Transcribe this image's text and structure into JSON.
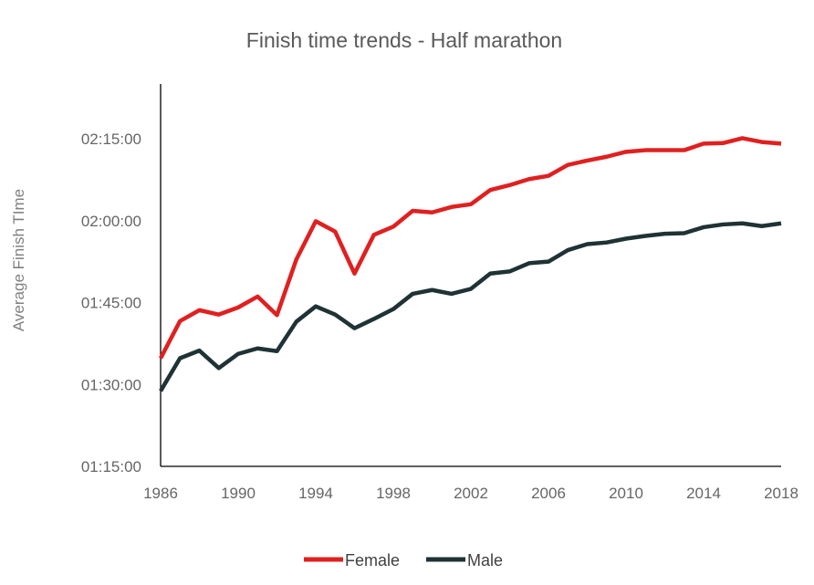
{
  "chart_data": {
    "type": "line",
    "title": "Finish time trends - Half marathon",
    "xlabel": "",
    "ylabel": "Average Finish TIme",
    "x": [
      1986,
      1987,
      1988,
      1989,
      1990,
      1991,
      1992,
      1993,
      1994,
      1995,
      1996,
      1997,
      1998,
      1999,
      2000,
      2001,
      2002,
      2003,
      2004,
      2005,
      2006,
      2007,
      2008,
      2009,
      2010,
      2011,
      2012,
      2013,
      2014,
      2015,
      2016,
      2017,
      2018
    ],
    "x_ticks": [
      "1986",
      "1990",
      "1994",
      "1998",
      "2002",
      "2006",
      "2010",
      "2014",
      "2018"
    ],
    "x_range": [
      1986,
      2018
    ],
    "y_ticks": [
      "01:15:00",
      "01:30:00",
      "01:45:00",
      "02:00:00",
      "02:15:00"
    ],
    "y_unit": "minutes",
    "ylim": [
      75,
      135
    ],
    "series": [
      {
        "name": "Female",
        "color": "#e02020",
        "values": [
          94.8,
          101.6,
          103.6,
          102.8,
          104.1,
          106.1,
          102.7,
          112.9,
          119.9,
          118.0,
          110.3,
          117.4,
          118.9,
          121.8,
          121.5,
          122.5,
          123.0,
          125.6,
          126.5,
          127.6,
          128.2,
          130.2,
          131.0,
          131.7,
          132.6,
          132.9,
          132.9,
          132.9,
          134.1,
          134.2,
          135.1,
          134.4,
          134.1
        ]
      },
      {
        "name": "Male",
        "color": "#1f3235",
        "values": [
          88.8,
          94.8,
          96.2,
          93.0,
          95.6,
          96.6,
          96.1,
          101.5,
          104.3,
          102.8,
          100.3,
          102.0,
          103.8,
          106.6,
          107.3,
          106.6,
          107.5,
          110.3,
          110.7,
          112.2,
          112.5,
          114.6,
          115.7,
          116.0,
          116.7,
          117.2,
          117.6,
          117.7,
          118.8,
          119.3,
          119.5,
          119.0,
          119.5
        ]
      }
    ],
    "grid": false,
    "legend_position": "bottom"
  }
}
